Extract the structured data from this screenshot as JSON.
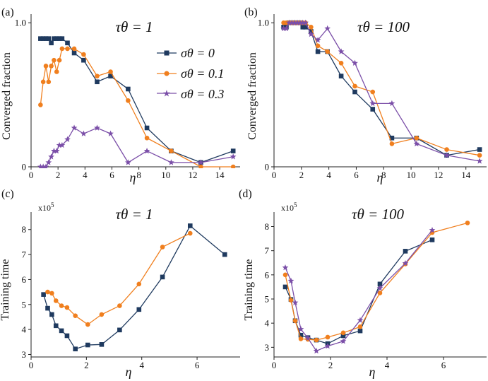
{
  "colors": {
    "series_0": "#1f3a5f",
    "series_1": "#f07f1e",
    "series_2": "#7b4fa8",
    "axis": "#222222"
  },
  "chart_data": [
    {
      "id": "a",
      "panel_label": "(a)",
      "type": "line",
      "title": "τθ = 1",
      "xlabel": "η",
      "ylabel": "Converged fraction",
      "xlim": [
        0,
        15.2
      ],
      "ylim": [
        0,
        1.06
      ],
      "xticks": [
        0,
        2,
        4,
        6,
        8,
        10,
        12,
        14
      ],
      "xtick_labels": [
        "0",
        "2",
        "4",
        "6",
        "8",
        "10",
        "12",
        "14"
      ],
      "yticks": [
        0,
        1
      ],
      "ytick_labels": [
        "0",
        "1.0"
      ],
      "legend_location": "center-right",
      "legend": [
        "σθ = 0",
        "σθ = 0.1",
        "σθ = 0.3"
      ],
      "series": [
        {
          "name": "σθ = 0",
          "marker": "square",
          "x": [
            0.7,
            0.9,
            1.1,
            1.3,
            1.5,
            1.7,
            1.9,
            2.1,
            2.3,
            2.7,
            3.2,
            3.9,
            4.9,
            5.9,
            7.2,
            8.6,
            10.4,
            12.6,
            15.0
          ],
          "y": [
            0.89,
            0.89,
            0.89,
            0.89,
            0.86,
            0.89,
            0.89,
            0.89,
            0.89,
            0.86,
            0.79,
            0.74,
            0.59,
            0.63,
            0.54,
            0.27,
            0.11,
            0.03,
            0.11
          ]
        },
        {
          "name": "σθ = 0.1",
          "marker": "circle",
          "x": [
            0.7,
            0.9,
            1.1,
            1.3,
            1.5,
            1.7,
            1.9,
            2.1,
            2.3,
            2.7,
            3.2,
            3.9,
            4.9,
            5.9,
            7.2,
            8.6,
            10.4,
            12.6,
            15.0
          ],
          "y": [
            0.43,
            0.59,
            0.7,
            0.59,
            0.7,
            0.74,
            0.66,
            0.74,
            0.82,
            0.82,
            0.82,
            0.78,
            0.63,
            0.66,
            0.46,
            0.2,
            0.11,
            0.0,
            0.0
          ]
        },
        {
          "name": "σθ = 0.3",
          "marker": "star",
          "x": [
            0.7,
            0.9,
            1.1,
            1.3,
            1.5,
            1.7,
            1.9,
            2.1,
            2.3,
            2.7,
            3.2,
            3.9,
            4.9,
            5.9,
            7.2,
            8.6,
            10.4,
            12.6,
            15.0
          ],
          "y": [
            0.0,
            0.0,
            0.0,
            0.03,
            0.07,
            0.11,
            0.11,
            0.15,
            0.15,
            0.19,
            0.27,
            0.23,
            0.27,
            0.23,
            0.03,
            0.11,
            0.03,
            0.03,
            0.07
          ]
        }
      ]
    },
    {
      "id": "b",
      "panel_label": "(b)",
      "type": "line",
      "title": "τθ = 100",
      "xlabel": "η",
      "ylabel": "Converged fraction",
      "xlim": [
        0,
        15.2
      ],
      "ylim": [
        0,
        1.06
      ],
      "xticks": [
        0,
        2,
        4,
        6,
        8,
        10,
        12,
        14
      ],
      "xtick_labels": [
        "0",
        "2",
        "4",
        "6",
        "8",
        "10",
        "12",
        "14"
      ],
      "yticks": [
        0,
        1
      ],
      "ytick_labels": [
        "0",
        "1.0"
      ],
      "series": [
        {
          "name": "σθ = 0",
          "marker": "square",
          "x": [
            0.7,
            0.9,
            1.1,
            1.3,
            1.5,
            1.7,
            1.9,
            2.1,
            2.3,
            2.7,
            3.2,
            3.9,
            4.9,
            5.9,
            7.2,
            8.6,
            10.4,
            12.6,
            15.0
          ],
          "y": [
            0.97,
            0.97,
            1.0,
            1.0,
            1.0,
            1.0,
            1.0,
            0.97,
            0.97,
            0.94,
            0.8,
            0.8,
            0.63,
            0.52,
            0.4,
            0.2,
            0.2,
            0.08,
            0.12
          ]
        },
        {
          "name": "σθ = 0.1",
          "marker": "circle",
          "x": [
            0.7,
            0.9,
            1.1,
            1.3,
            1.5,
            1.7,
            1.9,
            2.1,
            2.3,
            2.7,
            3.2,
            3.9,
            4.9,
            5.9,
            7.2,
            8.6,
            10.4,
            12.6,
            15.0
          ],
          "y": [
            1.0,
            1.0,
            1.0,
            1.0,
            1.0,
            1.0,
            1.0,
            1.0,
            1.0,
            0.97,
            0.84,
            0.8,
            0.72,
            0.56,
            0.52,
            0.16,
            0.2,
            0.12,
            0.08
          ]
        },
        {
          "name": "σθ = 0.3",
          "marker": "star",
          "x": [
            0.7,
            0.9,
            1.1,
            1.3,
            1.5,
            1.7,
            1.9,
            2.1,
            2.3,
            2.7,
            3.2,
            3.9,
            4.9,
            5.9,
            7.2,
            8.6,
            10.4,
            12.6,
            15.0
          ],
          "y": [
            0.96,
            0.96,
            1.0,
            1.0,
            1.0,
            1.0,
            1.0,
            1.0,
            1.0,
            0.92,
            0.88,
            0.96,
            0.8,
            0.72,
            0.44,
            0.44,
            0.16,
            0.08,
            0.04
          ]
        }
      ]
    },
    {
      "id": "c",
      "panel_label": "(c)",
      "type": "line",
      "title": "τθ = 1",
      "xlabel": "η",
      "ylabel": "Training time",
      "y_multiplier": "x10",
      "y_multiplier_exp": "5",
      "xlim": [
        0,
        7.3
      ],
      "ylim": [
        2.9,
        8.7
      ],
      "xticks": [
        0,
        2,
        4,
        6
      ],
      "xtick_labels": [
        "0",
        "2",
        "4",
        "6"
      ],
      "yticks": [
        3,
        4,
        5,
        6,
        7,
        8
      ],
      "ytick_labels": [
        "3",
        "4",
        "5",
        "6",
        "7",
        "8"
      ],
      "series": [
        {
          "name": "σθ = 0",
          "marker": "square",
          "x": [
            0.45,
            0.6,
            0.75,
            0.9,
            1.1,
            1.3,
            1.6,
            2.05,
            2.55,
            3.2,
            3.9,
            4.75,
            5.75,
            7.0
          ],
          "y": [
            5.4,
            4.85,
            4.6,
            4.15,
            3.95,
            3.75,
            3.22,
            3.38,
            3.4,
            3.98,
            4.8,
            6.1,
            8.15,
            7.0
          ]
        },
        {
          "name": "σθ = 0.1",
          "marker": "circle",
          "x": [
            0.6,
            0.75,
            0.9,
            1.1,
            1.3,
            1.6,
            2.05,
            2.55,
            3.2,
            3.9,
            4.75,
            5.75
          ],
          "y": [
            5.5,
            5.45,
            5.15,
            4.95,
            4.88,
            4.55,
            4.2,
            4.6,
            4.95,
            5.82,
            7.3,
            7.85
          ]
        }
      ]
    },
    {
      "id": "d",
      "panel_label": "(d)",
      "type": "line",
      "title": "τθ = 100",
      "xlabel": "η",
      "ylabel": "Training time",
      "y_multiplier": "x10",
      "y_multiplier_exp": "5",
      "xlim": [
        0,
        7.3
      ],
      "ylim": [
        2.6,
        8.6
      ],
      "xticks": [
        0,
        2,
        4,
        6
      ],
      "xtick_labels": [
        "0",
        "2",
        "4",
        "6"
      ],
      "yticks": [
        3,
        4,
        5,
        6,
        7,
        8
      ],
      "ytick_labels": [
        "3",
        "4",
        "5",
        "6",
        "7",
        "8"
      ],
      "series": [
        {
          "name": "σθ = 0",
          "marker": "square",
          "x": [
            0.4,
            0.6,
            0.75,
            0.95,
            1.2,
            1.5,
            1.9,
            2.45,
            3.05,
            3.75,
            4.65,
            5.6
          ],
          "y": [
            5.5,
            4.98,
            4.1,
            3.5,
            3.4,
            3.3,
            3.15,
            3.48,
            3.68,
            5.62,
            6.98,
            7.45
          ]
        },
        {
          "name": "σθ = 0.1",
          "marker": "circle",
          "x": [
            0.4,
            0.6,
            0.75,
            0.95,
            1.2,
            1.5,
            1.9,
            2.45,
            3.05,
            3.75,
            4.65,
            5.6,
            6.85
          ],
          "y": [
            6.0,
            4.95,
            4.1,
            3.35,
            3.33,
            3.3,
            3.42,
            3.6,
            3.85,
            5.25,
            6.45,
            7.75,
            8.15
          ]
        },
        {
          "name": "σθ = 0.3",
          "marker": "star",
          "x": [
            0.4,
            0.6,
            0.75,
            0.95,
            1.2,
            1.5,
            1.9,
            2.45,
            3.05,
            3.75,
            4.65,
            5.6
          ],
          "y": [
            6.3,
            5.75,
            4.85,
            3.75,
            3.38,
            2.85,
            3.05,
            3.25,
            4.12,
            5.45,
            6.48,
            7.85
          ]
        }
      ]
    }
  ]
}
